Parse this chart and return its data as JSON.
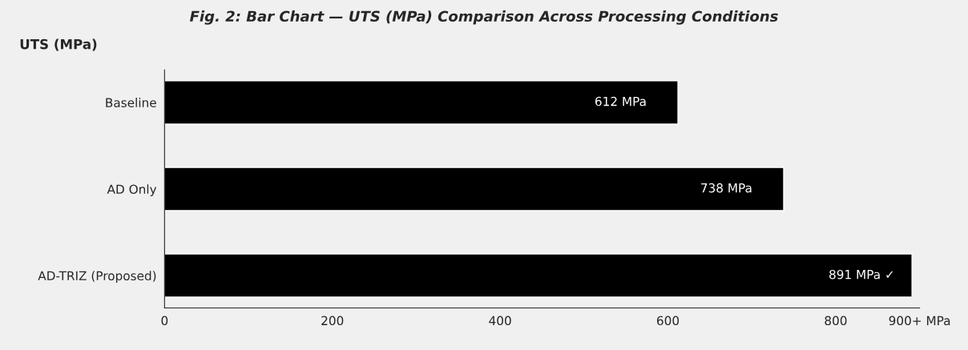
{
  "chart_data": {
    "type": "bar",
    "orientation": "horizontal",
    "title": "Fig. 2: Bar Chart — UTS (MPa) Comparison Across Processing Conditions",
    "subtitle": "UTS (MPa)",
    "categories": [
      "Baseline",
      "AD Only",
      "AD-TRIZ (Proposed)"
    ],
    "values": [
      612,
      738,
      891
    ],
    "colors": [
      "#000000",
      "#000000",
      "#000000"
    ],
    "value_labels": [
      "612 MPa",
      "738 MPa",
      "891 MPa ✓"
    ],
    "xlim": [
      0,
      900
    ],
    "xticks": [
      0,
      200,
      400,
      600,
      800,
      {
        "value": 900,
        "label": "900+ MPa"
      }
    ],
    "grid": false,
    "legend": false
  }
}
